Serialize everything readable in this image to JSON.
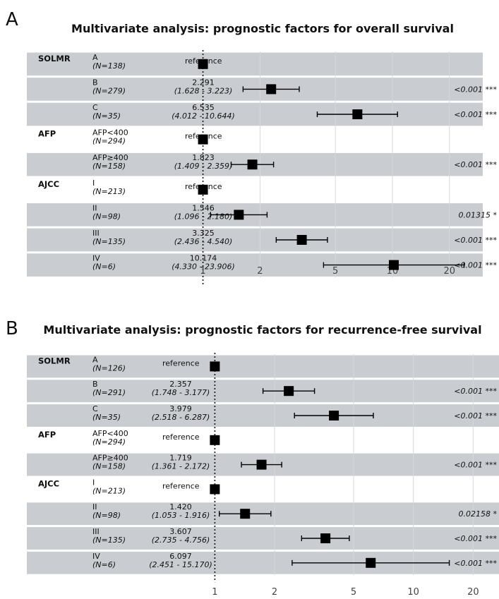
{
  "chart_data": [
    {
      "type": "forest",
      "panel_label": "A",
      "title": "Multivariate analysis: prognostic factors for overall survival",
      "x_scale": "log",
      "xlim": [
        0.7,
        30
      ],
      "ticks": [
        1,
        2,
        5,
        10,
        20
      ],
      "tick_labels": [
        "1",
        "2",
        "5",
        "10",
        "20"
      ],
      "reference_line": 1,
      "rows": [
        {
          "variable": "SOLMR",
          "level": "A",
          "n": "(N=138)",
          "estimate_label": "reference",
          "ci_label": "",
          "hr": 1,
          "lo": null,
          "hi": null,
          "p": ""
        },
        {
          "variable": "",
          "level": "B",
          "n": "(N=279)",
          "estimate_label": "2.291",
          "ci_label": "(1.628 -  3.223)",
          "hr": 2.291,
          "lo": 1.628,
          "hi": 3.223,
          "p": "<0.001 ***"
        },
        {
          "variable": "",
          "level": "C",
          "n": "(N=35)",
          "estimate_label": "6.535",
          "ci_label": "(4.012 - 10.644)",
          "hr": 6.535,
          "lo": 4.012,
          "hi": 10.644,
          "p": "<0.001 ***"
        },
        {
          "variable": "AFP",
          "level": "AFP<400",
          "n": "(N=294)",
          "estimate_label": "reference",
          "ci_label": "",
          "hr": 1,
          "lo": null,
          "hi": null,
          "p": ""
        },
        {
          "variable": "",
          "level": "AFP≥400",
          "n": "(N=158)",
          "estimate_label": "1.823",
          "ci_label": "(1.409 -  2.359)",
          "hr": 1.823,
          "lo": 1.409,
          "hi": 2.359,
          "p": "<0.001 ***"
        },
        {
          "variable": "AJCC",
          "level": "I",
          "n": "(N=213)",
          "estimate_label": "reference",
          "ci_label": "",
          "hr": 1,
          "lo": null,
          "hi": null,
          "p": ""
        },
        {
          "variable": "",
          "level": "II",
          "n": "(N=98)",
          "estimate_label": "1.546",
          "ci_label": "(1.096 -  2.180)",
          "hr": 1.546,
          "lo": 1.096,
          "hi": 2.18,
          "p": "0.01315 *"
        },
        {
          "variable": "",
          "level": "III",
          "n": "(N=135)",
          "estimate_label": "3.325",
          "ci_label": "(2.436 -  4.540)",
          "hr": 3.325,
          "lo": 2.436,
          "hi": 4.54,
          "p": "<0.001 ***"
        },
        {
          "variable": "",
          "level": "IV",
          "n": "(N=6)",
          "estimate_label": "10.174",
          "ci_label": "(4.330 - 23.906)",
          "hr": 10.174,
          "lo": 4.33,
          "hi": 23.906,
          "p": "<0.001 ***"
        }
      ]
    },
    {
      "type": "forest",
      "panel_label": "B",
      "title": "Multivariate analysis: prognostic factors for recurrence-free survival",
      "x_scale": "log",
      "xlim": [
        0.62,
        27
      ],
      "ticks": [
        1,
        2,
        5,
        10,
        20
      ],
      "tick_labels": [
        "1",
        "2",
        "5",
        "10",
        "20"
      ],
      "reference_line": 1,
      "rows": [
        {
          "variable": "SOLMR",
          "level": "A",
          "n": "(N=126)",
          "estimate_label": "reference",
          "ci_label": "",
          "hr": 1,
          "lo": null,
          "hi": null,
          "p": ""
        },
        {
          "variable": "",
          "level": "B",
          "n": "(N=291)",
          "estimate_label": "2.357",
          "ci_label": "(1.748 -  3.177)",
          "hr": 2.357,
          "lo": 1.748,
          "hi": 3.177,
          "p": "<0.001 ***"
        },
        {
          "variable": "",
          "level": "C",
          "n": "(N=35)",
          "estimate_label": "3.979",
          "ci_label": "(2.518 -  6.287)",
          "hr": 3.979,
          "lo": 2.518,
          "hi": 6.287,
          "p": "<0.001 ***"
        },
        {
          "variable": "AFP",
          "level": "AFP<400",
          "n": "(N=294)",
          "estimate_label": "reference",
          "ci_label": "",
          "hr": 1,
          "lo": null,
          "hi": null,
          "p": ""
        },
        {
          "variable": "",
          "level": "AFP≥400",
          "n": "(N=158)",
          "estimate_label": "1.719",
          "ci_label": "(1.361 -  2.172)",
          "hr": 1.719,
          "lo": 1.361,
          "hi": 2.172,
          "p": "<0.001 ***"
        },
        {
          "variable": "AJCC",
          "level": "I",
          "n": "(N=213)",
          "estimate_label": "reference",
          "ci_label": "",
          "hr": 1,
          "lo": null,
          "hi": null,
          "p": ""
        },
        {
          "variable": "",
          "level": "II",
          "n": "(N=98)",
          "estimate_label": "1.420",
          "ci_label": "(1.053 -  1.916)",
          "hr": 1.42,
          "lo": 1.053,
          "hi": 1.916,
          "p": "0.02158 *"
        },
        {
          "variable": "",
          "level": "III",
          "n": "(N=135)",
          "estimate_label": "3.607",
          "ci_label": "(2.735 -  4.756)",
          "hr": 3.607,
          "lo": 2.735,
          "hi": 4.756,
          "p": "<0.001 ***"
        },
        {
          "variable": "",
          "level": "IV",
          "n": "(N=6)",
          "estimate_label": "6.097",
          "ci_label": "(2.451 - 15.170)",
          "hr": 6.097,
          "lo": 2.451,
          "hi": 15.17,
          "p": "<0.001 ***"
        }
      ]
    }
  ],
  "colors": {
    "band": "#c9ccd0",
    "grid": "#d6d8da",
    "marker": "#000000",
    "text": "#111111"
  }
}
